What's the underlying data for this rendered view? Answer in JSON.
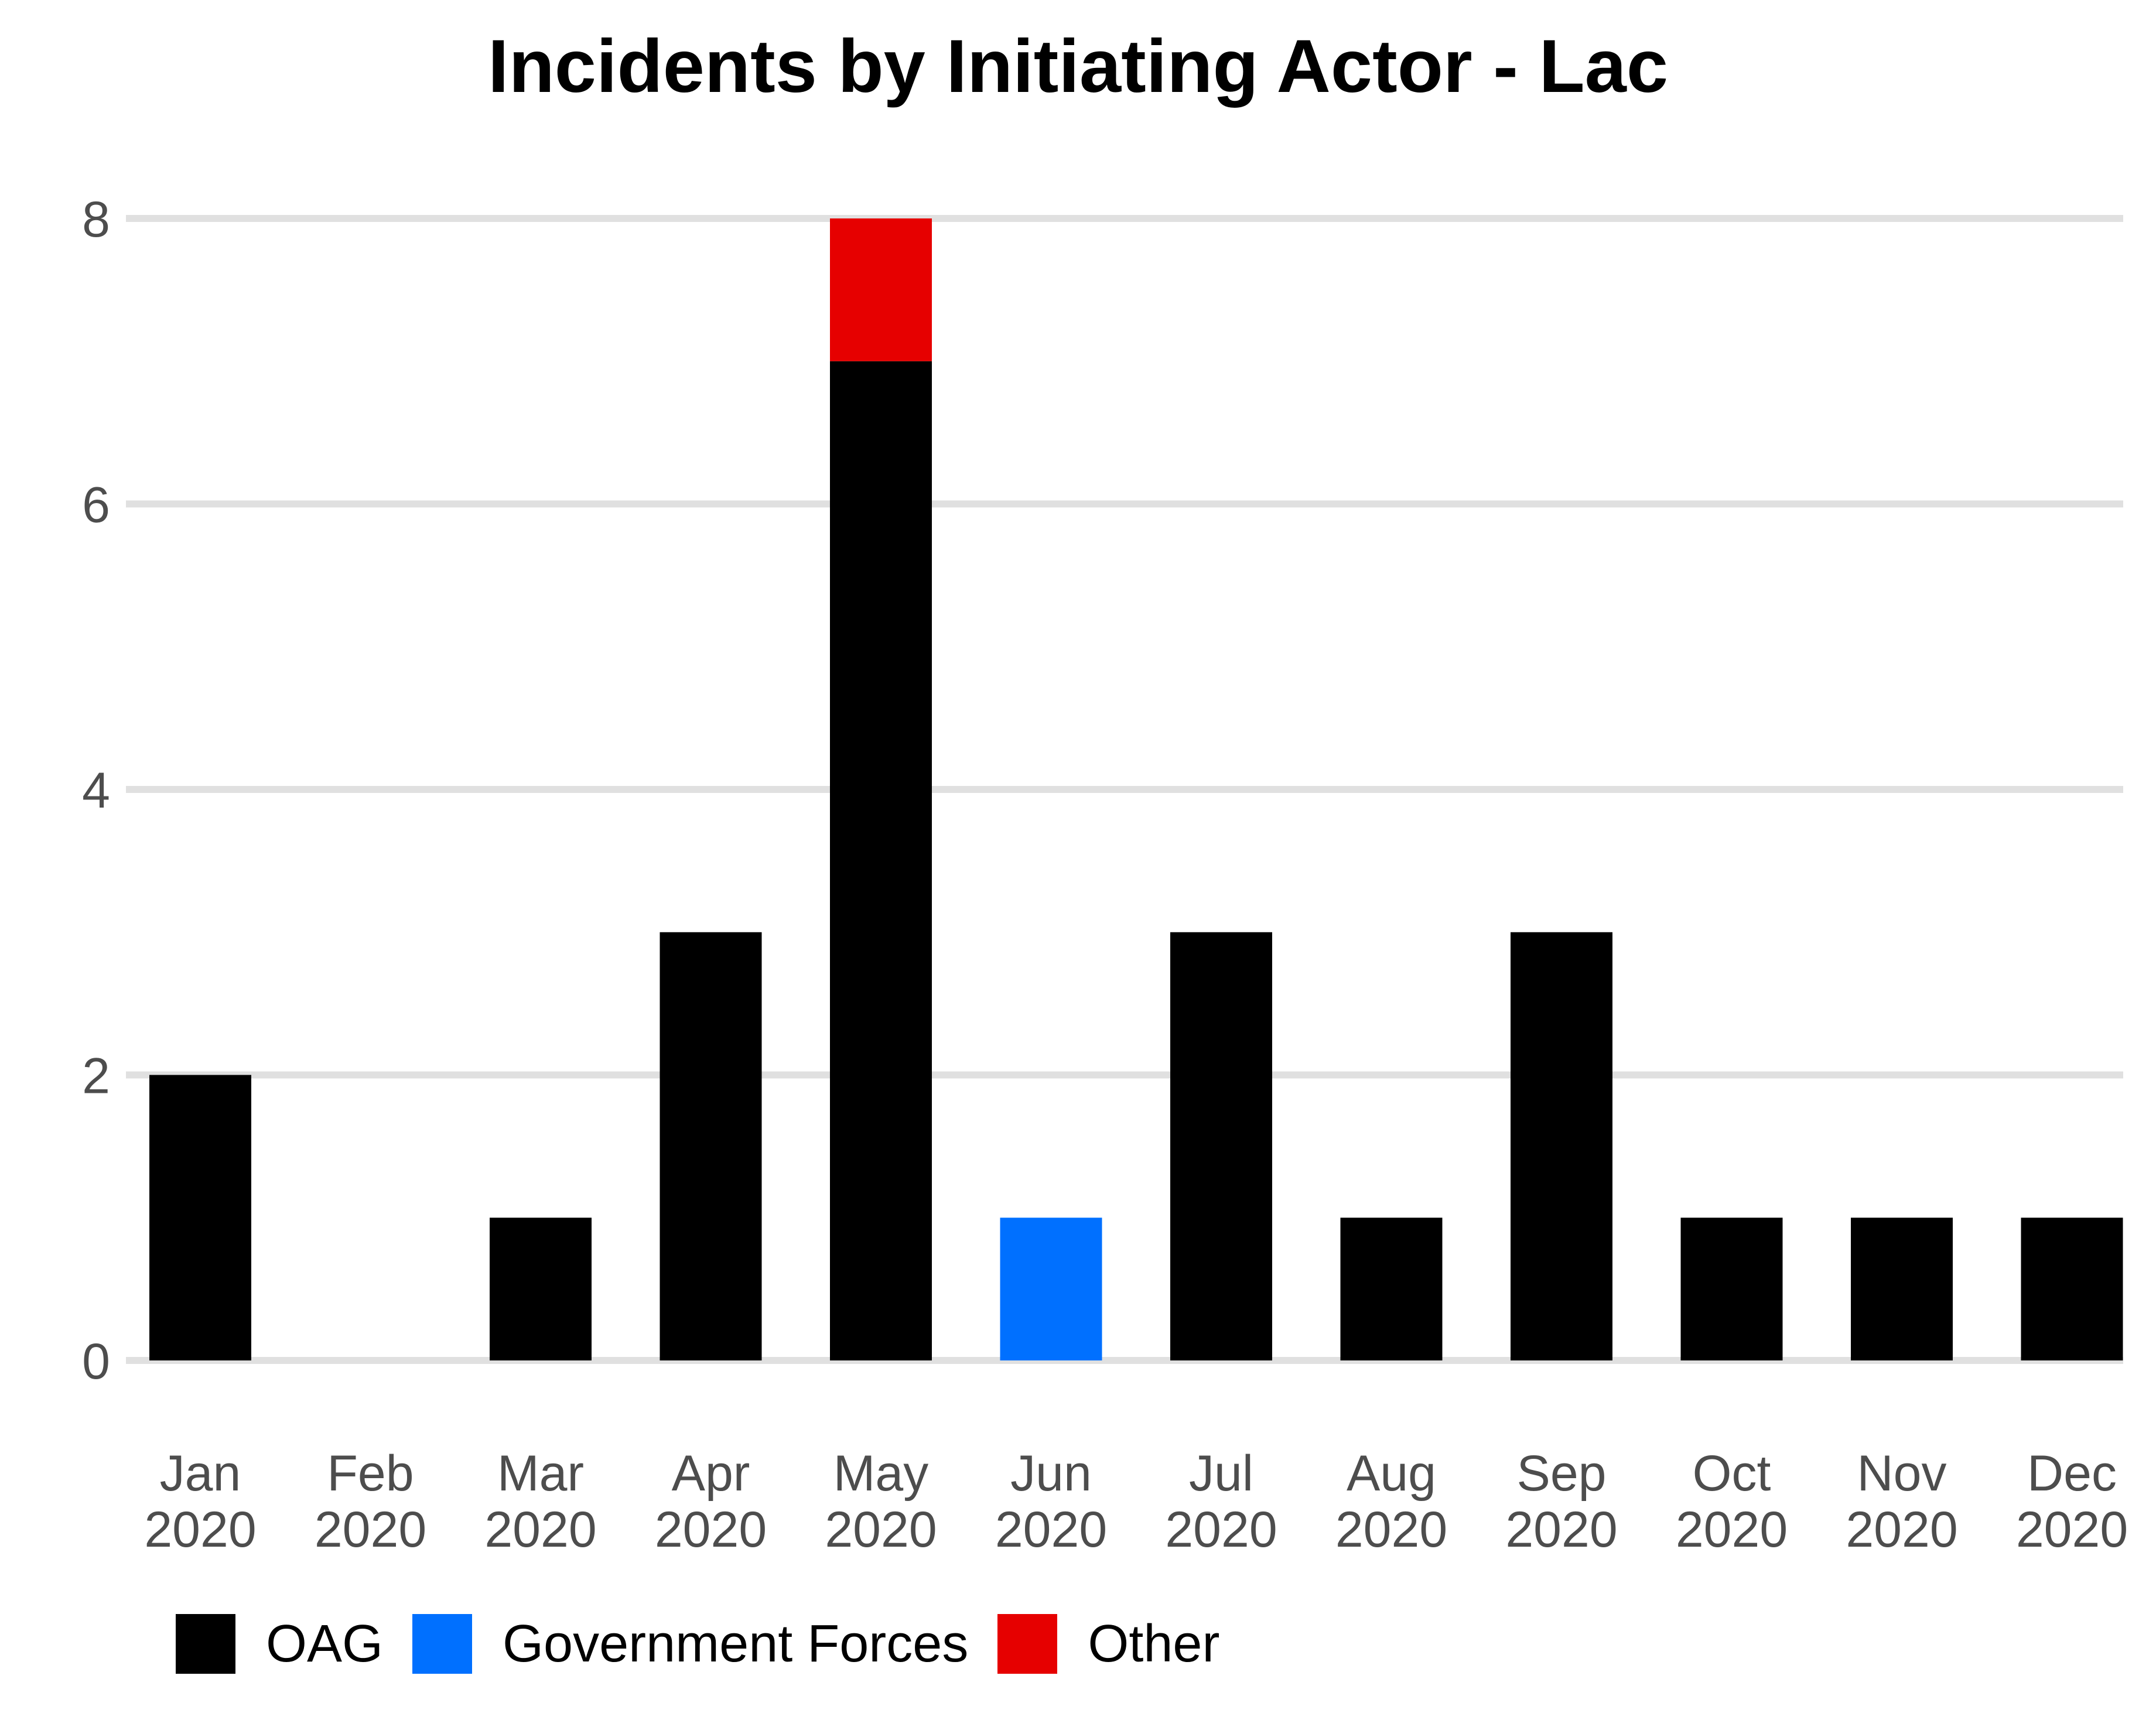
{
  "chart_data": {
    "type": "bar",
    "stacked": true,
    "title": "Incidents by Initiating Actor - Lac",
    "xlabel": "",
    "ylabel": "",
    "categories": [
      [
        "Jan",
        "2020"
      ],
      [
        "Feb",
        "2020"
      ],
      [
        "Mar",
        "2020"
      ],
      [
        "Apr",
        "2020"
      ],
      [
        "May",
        "2020"
      ],
      [
        "Jun",
        "2020"
      ],
      [
        "Jul",
        "2020"
      ],
      [
        "Aug",
        "2020"
      ],
      [
        "Sep",
        "2020"
      ],
      [
        "Oct",
        "2020"
      ],
      [
        "Nov",
        "2020"
      ],
      [
        "Dec",
        "2020"
      ]
    ],
    "series": [
      {
        "name": "OAG",
        "color": "#000000",
        "values": [
          2,
          0,
          1,
          3,
          7,
          0,
          3,
          1,
          3,
          1,
          1,
          1
        ]
      },
      {
        "name": "Government Forces",
        "color": "#0070ff",
        "values": [
          0,
          0,
          0,
          0,
          0,
          1,
          0,
          0,
          0,
          0,
          0,
          0
        ]
      },
      {
        "name": "Other",
        "color": "#e60000",
        "values": [
          0,
          0,
          0,
          0,
          1,
          0,
          0,
          0,
          0,
          0,
          0,
          0
        ]
      }
    ],
    "ylim": [
      0,
      8
    ],
    "yticks": [
      "0",
      "2",
      "4",
      "6",
      "8"
    ],
    "grid": "horizontal",
    "legend": "bottom-left"
  }
}
